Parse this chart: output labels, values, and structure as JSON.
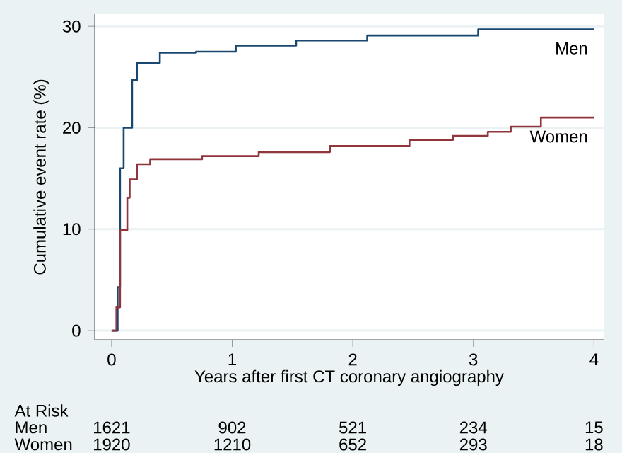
{
  "chart_data": {
    "type": "step",
    "xlabel": "Years after first CT coronary angiography",
    "ylabel": "Cumulative event rate (%)",
    "xlim": [
      -0.14,
      4.08
    ],
    "ylim": [
      -0.9,
      31.2
    ],
    "xticks": [
      0,
      1,
      2,
      3,
      4
    ],
    "yticks": [
      0,
      10,
      20,
      30
    ],
    "grid": "y",
    "legend": false,
    "series": [
      {
        "name": "Men",
        "color": "#1a476f",
        "x": [
          0,
          0.05,
          0.07,
          0.1,
          0.17,
          0.21,
          0.4,
          0.7,
          1.03,
          1.53,
          2.12,
          3.03,
          3.04,
          4.0
        ],
        "values": [
          0,
          4.3,
          16,
          20,
          24.7,
          26.4,
          27.4,
          27.5,
          28.1,
          28.6,
          29.1,
          29.1,
          29.7,
          29.7
        ]
      },
      {
        "name": "Women",
        "color": "#90353b",
        "x": [
          0,
          0.04,
          0.07,
          0.13,
          0.15,
          0.21,
          0.32,
          0.75,
          1.22,
          1.81,
          2.47,
          2.83,
          3.12,
          3.31,
          3.56,
          4.0
        ],
        "values": [
          0,
          2.3,
          9.9,
          13.1,
          14.9,
          16.4,
          16.9,
          17.2,
          17.6,
          18.2,
          18.8,
          19.2,
          19.6,
          20.1,
          21.0,
          21.0
        ]
      }
    ],
    "annotations": [
      "At Risk",
      "Men",
      "1621",
      "902",
      "521",
      "234",
      "15",
      "Women",
      "1920",
      "1210",
      "652",
      "293",
      "18"
    ]
  }
}
